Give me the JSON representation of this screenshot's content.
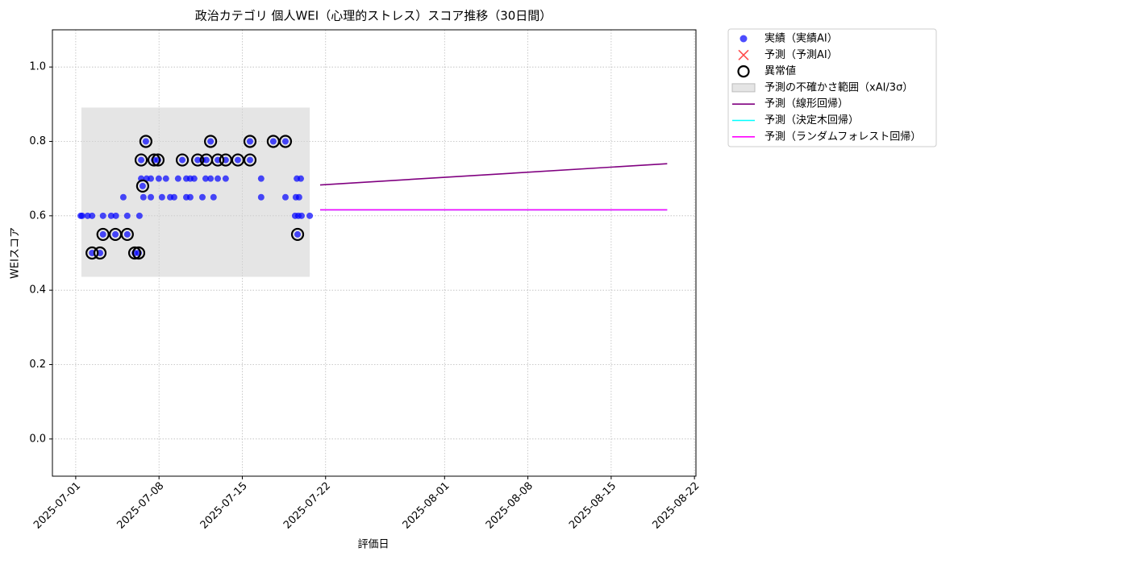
{
  "chart_data": {
    "type": "scatter",
    "title": "政治カテゴリ 個人WEI（心理的ストレス）スコア推移（30日間）",
    "x_label": "評価日",
    "y_label": "WEIスコア",
    "xlim": [
      "2025-06-29 01:00",
      "2025-08-22 03:00"
    ],
    "xticks": [
      "2025-07-01",
      "2025-07-08",
      "2025-07-15",
      "2025-07-22",
      "2025-08-01",
      "2025-08-08",
      "2025-08-15",
      "2025-08-22"
    ],
    "ylim": [
      -0.1,
      1.1
    ],
    "yticks": [
      {
        "value": 0,
        "label": "0.0"
      },
      0.2,
      0.4,
      0.6,
      0.8,
      {
        "value": 1,
        "label": "1.0"
      }
    ],
    "grid": true,
    "legend": "outside-upper-right",
    "series": [
      {
        "name": "実績（実績AI）",
        "kind": "scatter",
        "marker": "circle",
        "color": "#0000ff",
        "x": [
          "2025-07-01 10:00",
          "2025-07-01 13:00",
          "2025-07-02 00:00",
          "2025-07-02 09:00",
          "2025-07-02 09:00",
          "2025-07-03 01:00",
          "2025-07-03 07:00",
          "2025-07-03 07:00",
          "2025-07-03 23:30",
          "2025-07-04 08:00",
          "2025-07-04 09:00",
          "2025-07-05 00:00",
          "2025-07-05 08:00",
          "2025-07-05 08:00",
          "2025-07-05 23:00",
          "2025-07-06 07:00",
          "2025-07-06 08:30",
          "2025-07-06 12:00",
          "2025-07-06 12:00",
          "2025-07-06 15:00",
          "2025-07-06 16:30",
          "2025-07-06 21:30",
          "2025-07-06 23:00",
          "2025-07-07 07:30",
          "2025-07-07 07:30",
          "2025-07-07 14:00",
          "2025-07-07 22:00",
          "2025-07-07 23:30",
          "2025-07-08 06:00",
          "2025-07-08 14:00",
          "2025-07-08 22:30",
          "2025-07-09 06:30",
          "2025-07-09 14:30",
          "2025-07-09 23:00",
          "2025-07-10 07:00",
          "2025-07-10 07:00",
          "2025-07-10 15:00",
          "2025-07-10 15:00",
          "2025-07-10 23:00",
          "2025-07-11 06:00",
          "2025-07-11 15:30",
          "2025-07-11 15:30",
          "2025-07-11 22:00",
          "2025-07-11 23:30",
          "2025-07-12 08:00",
          "2025-07-12 08:00",
          "2025-07-12 14:00",
          "2025-07-12 22:30",
          "2025-07-12 22:30",
          "2025-07-13 14:30",
          "2025-07-13 14:30",
          "2025-07-14 15:00",
          "2025-07-15 15:30",
          "2025-07-15 15:30",
          "2025-07-16 14:00",
          "2025-07-16 14:00",
          "2025-07-17 14:30",
          "2025-07-18 15:00",
          "2025-07-18 15:00",
          "2025-07-19 10:30",
          "2025-07-19 12:00",
          "2025-07-19 14:00",
          "2025-07-19 15:30",
          "2025-07-19 17:00",
          "2025-07-19 18:30",
          "2025-07-19 22:00",
          "2025-07-19 23:30",
          "2025-07-20 16:00"
        ],
        "values": [
          0.6,
          0.6,
          0.6,
          0.5,
          0.6,
          0.5,
          0.55,
          0.6,
          0.6,
          0.55,
          0.6,
          0.65,
          0.55,
          0.6,
          0.5,
          0.5,
          0.6,
          0.7,
          0.75,
          0.68,
          0.65,
          0.8,
          0.7,
          0.7,
          0.65,
          0.75,
          0.75,
          0.7,
          0.65,
          0.7,
          0.65,
          0.65,
          0.7,
          0.75,
          0.7,
          0.65,
          0.65,
          0.7,
          0.7,
          0.75,
          0.65,
          0.75,
          0.7,
          0.75,
          0.8,
          0.7,
          0.65,
          0.75,
          0.7,
          0.7,
          0.75,
          0.75,
          0.8,
          0.75,
          0.7,
          0.65,
          0.8,
          0.65,
          0.8,
          0.6,
          0.65,
          0.7,
          0.55,
          0.6,
          0.65,
          0.7,
          0.6,
          0.6
        ]
      },
      {
        "name": "予測（予測AI）",
        "kind": "scatter",
        "marker": "x",
        "color": "#ff0000",
        "x": [],
        "values": []
      },
      {
        "name": "異常値",
        "kind": "scatter",
        "marker": "ring",
        "color": "#000000",
        "x": [
          "2025-07-02 09:00",
          "2025-07-03 01:00",
          "2025-07-03 07:00",
          "2025-07-04 08:00",
          "2025-07-05 08:00",
          "2025-07-05 23:00",
          "2025-07-06 07:00",
          "2025-07-06 12:00",
          "2025-07-06 15:00",
          "2025-07-06 21:30",
          "2025-07-07 14:00",
          "2025-07-07 22:00",
          "2025-07-09 23:00",
          "2025-07-11 06:00",
          "2025-07-11 23:30",
          "2025-07-12 08:00",
          "2025-07-12 22:30",
          "2025-07-13 14:30",
          "2025-07-14 15:00",
          "2025-07-15 15:30",
          "2025-07-15 15:30",
          "2025-07-17 14:30",
          "2025-07-18 15:00",
          "2025-07-19 15:30"
        ],
        "values": [
          0.5,
          0.5,
          0.55,
          0.55,
          0.55,
          0.5,
          0.5,
          0.75,
          0.68,
          0.8,
          0.75,
          0.75,
          0.75,
          0.75,
          0.75,
          0.8,
          0.75,
          0.75,
          0.75,
          0.8,
          0.75,
          0.8,
          0.8,
          0.55
        ]
      },
      {
        "name": "予測の不確かさ範囲（xAI/3σ）",
        "kind": "band",
        "color": "#d3d3d3",
        "x": [
          "2025-07-01 11:30",
          "2025-07-20 16:00"
        ],
        "lower": [
          0.436,
          0.436
        ],
        "upper": [
          0.891,
          0.891
        ]
      },
      {
        "name": "予測（線形回帰）",
        "kind": "line",
        "color": "#800080",
        "x": [
          "2025-07-21 13:00",
          "2025-08-19 17:00"
        ],
        "values": [
          0.683,
          0.74
        ]
      },
      {
        "name": "予測（決定木回帰）",
        "kind": "line",
        "color": "#00ffff",
        "x": [
          "2025-07-21 13:00",
          "2025-08-19 17:00"
        ],
        "values": [
          0.616,
          0.616
        ]
      },
      {
        "name": "予測（ランダムフォレスト回帰）",
        "kind": "line",
        "color": "#ff00ff",
        "x": [
          "2025-07-21 13:00",
          "2025-08-19 17:00"
        ],
        "values": [
          0.616,
          0.616
        ]
      }
    ]
  }
}
